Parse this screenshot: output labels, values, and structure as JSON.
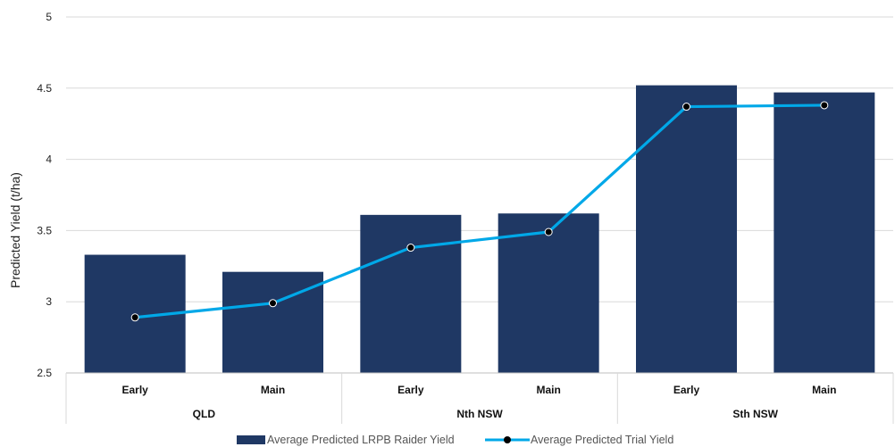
{
  "chart_data": {
    "type": "bar",
    "title": "",
    "xlabel": "",
    "ylabel": "Predicted Yield (t/ha)",
    "ylim": [
      2.5,
      5
    ],
    "yticks": [
      "2.5",
      "3",
      "3.5",
      "4",
      "4.5",
      "5"
    ],
    "grid": true,
    "legend_position": "bottom",
    "categories": [
      "Early",
      "Main",
      "Early",
      "Main",
      "Early",
      "Main"
    ],
    "groups": [
      {
        "label": "QLD",
        "span": 2
      },
      {
        "label": "Nth NSW",
        "span": 2
      },
      {
        "label": "Sth NSW",
        "span": 2
      }
    ],
    "series": [
      {
        "name": "Average Predicted LRPB Raider Yield",
        "type": "bar",
        "color": "#1f3864",
        "values": [
          3.33,
          3.21,
          3.61,
          3.62,
          4.52,
          4.47
        ]
      },
      {
        "name": "Average Predicted Trial Yield",
        "type": "line",
        "color": "#00a8e8",
        "marker_color": "#000000",
        "values": [
          2.89,
          2.99,
          3.38,
          3.49,
          4.37,
          4.38
        ]
      }
    ]
  }
}
